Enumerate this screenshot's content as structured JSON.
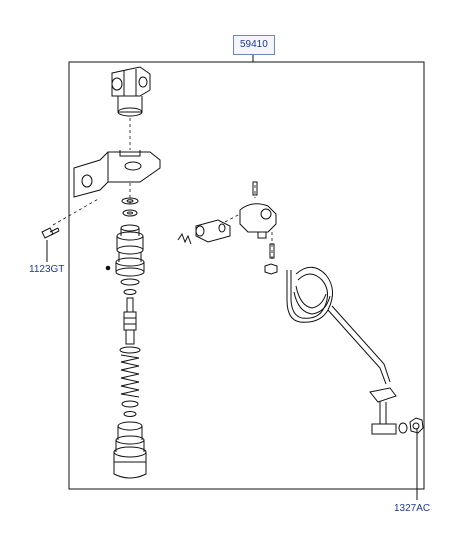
{
  "labels": {
    "assembly": "59410",
    "bolt": "1123GT",
    "nut_washer": "1327AC"
  },
  "colors": {
    "line": "#111111",
    "label_text": "#1f3a93",
    "label_box_border": "#6f86b8",
    "label_box_fill": "#f3f6fc",
    "background": "#ffffff"
  }
}
